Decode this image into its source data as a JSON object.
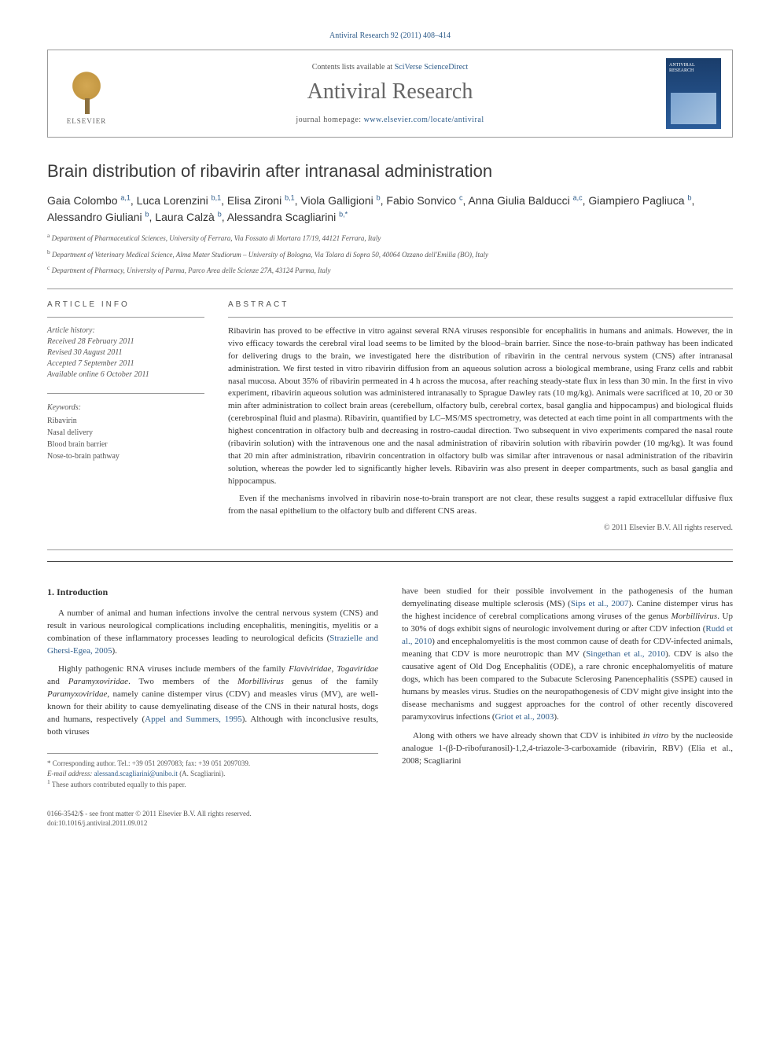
{
  "journal_ref": "Antiviral Research 92 (2011) 408–414",
  "contents_prefix": "Contents lists available at ",
  "contents_link": "SciVerse ScienceDirect",
  "journal_name": "Antiviral Research",
  "homepage_prefix": "journal homepage: ",
  "homepage_url": "www.elsevier.com/locate/antiviral",
  "elsevier_label": "ELSEVIER",
  "cover_title": "ANTIVIRAL RESEARCH",
  "article_title": "Brain distribution of ribavirin after intranasal administration",
  "authors_html": "Gaia Colombo <sup>a,1</sup>, Luca Lorenzini <sup>b,1</sup>, Elisa Zironi <sup>b,1</sup>, Viola Galligioni <sup>b</sup>, Fabio Sonvico <sup>c</sup>, Anna Giulia Balducci <sup>a,c</sup>, Giampiero Pagliuca <sup>b</sup>, Alessandro Giuliani <sup>b</sup>, Laura Calzà <sup>b</sup>, Alessandra Scagliarini <sup>b,*</sup>",
  "affiliations": [
    {
      "sup": "a",
      "text": "Department of Pharmaceutical Sciences, University of Ferrara, Via Fossato di Mortara 17/19, 44121 Ferrara, Italy"
    },
    {
      "sup": "b",
      "text": "Department of Veterinary Medical Science, Alma Mater Studiorum – University of Bologna, Via Tolara di Sopra 50, 40064 Ozzano dell'Emilia (BO), Italy"
    },
    {
      "sup": "c",
      "text": "Department of Pharmacy, University of Parma, Parco Area delle Scienze 27A, 43124 Parma, Italy"
    }
  ],
  "info_heading": "ARTICLE INFO",
  "abstract_heading": "ABSTRACT",
  "history_label": "Article history:",
  "history": [
    "Received 28 February 2011",
    "Revised 30 August 2011",
    "Accepted 7 September 2011",
    "Available online 6 October 2011"
  ],
  "keywords_label": "Keywords:",
  "keywords": [
    "Ribavirin",
    "Nasal delivery",
    "Blood brain barrier",
    "Nose-to-brain pathway"
  ],
  "abstract": {
    "p1": "Ribavirin has proved to be effective in vitro against several RNA viruses responsible for encephalitis in humans and animals. However, the in vivo efficacy towards the cerebral viral load seems to be limited by the blood–brain barrier. Since the nose-to-brain pathway has been indicated for delivering drugs to the brain, we investigated here the distribution of ribavirin in the central nervous system (CNS) after intranasal administration. We first tested in vitro ribavirin diffusion from an aqueous solution across a biological membrane, using Franz cells and rabbit nasal mucosa. About 35% of ribavirin permeated in 4 h across the mucosa, after reaching steady-state flux in less than 30 min. In the first in vivo experiment, ribavirin aqueous solution was administered intranasally to Sprague Dawley rats (10 mg/kg). Animals were sacrificed at 10, 20 or 30 min after administration to collect brain areas (cerebellum, olfactory bulb, cerebral cortex, basal ganglia and hippocampus) and biological fluids (cerebrospinal fluid and plasma). Ribavirin, quantified by LC–MS/MS spectrometry, was detected at each time point in all compartments with the highest concentration in olfactory bulb and decreasing in rostro-caudal direction. Two subsequent in vivo experiments compared the nasal route (ribavirin solution) with the intravenous one and the nasal administration of ribavirin solution with ribavirin powder (10 mg/kg). It was found that 20 min after administration, ribavirin concentration in olfactory bulb was similar after intravenous or nasal administration of the ribavirin solution, whereas the powder led to significantly higher levels. Ribavirin was also present in deeper compartments, such as basal ganglia and hippocampus.",
    "p2": "Even if the mechanisms involved in ribavirin nose-to-brain transport are not clear, these results suggest a rapid extracellular diffusive flux from the nasal epithelium to the olfactory bulb and different CNS areas."
  },
  "copyright": "© 2011 Elsevier B.V. All rights reserved.",
  "intro_heading": "1. Introduction",
  "body_left": {
    "p1": "A number of animal and human infections involve the central nervous system (CNS) and result in various neurological complications including encephalitis, meningitis, myelitis or a combination of these inflammatory processes leading to neurological deficits (Strazielle and Ghersi-Egea, 2005).",
    "p2": "Highly pathogenic RNA viruses include members of the family Flaviviridae, Togaviridae and Paramyxoviridae. Two members of the Morbillivirus genus of the family Paramyxoviridae, namely canine distemper virus (CDV) and measles virus (MV), are well-known for their ability to cause demyelinating disease of the CNS in their natural hosts, dogs and humans, respectively (Appel and Summers, 1995). Although with inconclusive results, both viruses"
  },
  "body_right": {
    "p1": "have been studied for their possible involvement in the pathogenesis of the human demyelinating disease multiple sclerosis (MS) (Sips et al., 2007). Canine distemper virus has the highest incidence of cerebral complications among viruses of the genus Morbillivirus. Up to 30% of dogs exhibit signs of neurologic involvement during or after CDV infection (Rudd et al., 2010) and encephalomyelitis is the most common cause of death for CDV-infected animals, meaning that CDV is more neurotropic than MV (Singethan et al., 2010). CDV is also the causative agent of Old Dog Encephalitis (ODE), a rare chronic encephalomyelitis of mature dogs, which has been compared to the Subacute Sclerosing Panencephalitis (SSPE) caused in humans by measles virus. Studies on the neuropathogenesis of CDV might give insight into the disease mechanisms and suggest approaches for the control of other recently discovered paramyxovirus infections (Griot et al., 2003).",
    "p2": "Along with others we have already shown that CDV is inhibited in vitro by the nucleoside analogue 1-(β-D-ribofuranosil)-1,2,4-triazole-3-carboxamide (ribavirin, RBV) (Elia et al., 2008; Scagliarini"
  },
  "footnotes": {
    "corr": "* Corresponding author. Tel.: +39 051 2097083; fax: +39 051 2097039.",
    "email_label": "E-mail address:",
    "email": "alessand.scagliarini@unibo.it",
    "email_name": "(A. Scagliarini).",
    "note1": "1 These authors contributed equally to this paper."
  },
  "footer": {
    "issn": "0166-3542/$ - see front matter © 2011 Elsevier B.V. All rights reserved.",
    "doi": "doi:10.1016/j.antiviral.2011.09.012"
  },
  "colors": {
    "link": "#2e5c8a",
    "text": "#333333",
    "muted": "#555555",
    "rule": "#999999",
    "cover_bg_top": "#1a3d6b",
    "cover_bg_bottom": "#2a5c9a"
  }
}
